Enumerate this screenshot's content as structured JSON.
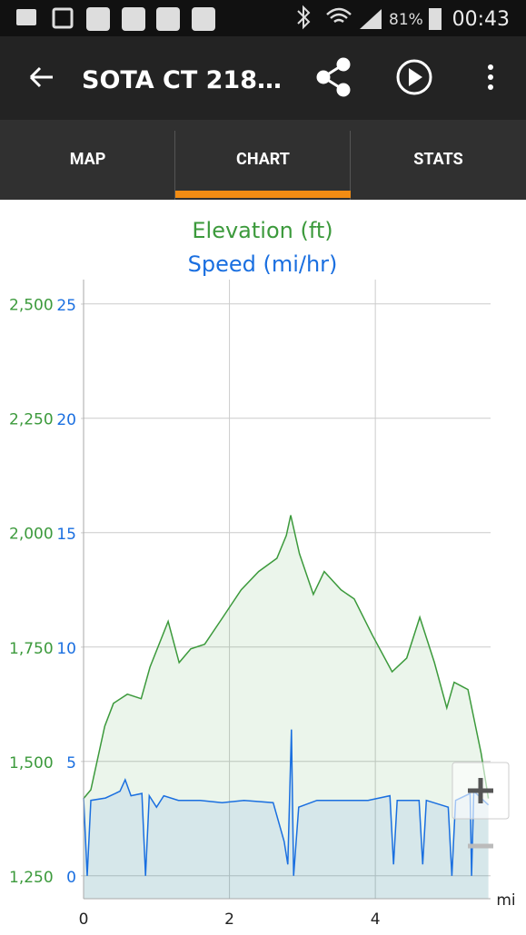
{
  "status_bar": {
    "battery": "81%",
    "time": "00:43"
  },
  "app_bar": {
    "title": "SOTA CT 218…"
  },
  "tabs": [
    "MAP",
    "CHART",
    "STATS"
  ],
  "chart_data": {
    "type": "line",
    "x_label": "mi",
    "xlim": [
      0,
      5.58
    ],
    "xticks": [
      0,
      2,
      4
    ],
    "ylim": [
      1200,
      2553
    ],
    "yticks": [
      {
        "value": 1250,
        "label": "1,250"
      },
      {
        "value": 1500,
        "label": "1,500"
      },
      {
        "value": 1750,
        "label": "1,750"
      },
      {
        "value": 2000,
        "label": "2,000"
      },
      {
        "value": 2250,
        "label": "2,250"
      },
      {
        "value": 2500,
        "label": "2,500"
      }
    ],
    "y2lim": [
      -1,
      26.07
    ],
    "y2ticks": [
      0,
      5,
      10,
      15,
      20,
      25
    ],
    "grid": true,
    "series": [
      {
        "name": "Elevation (ft)",
        "color": "#3c9a3c",
        "fill": "rgba(60,154,60,0.10)",
        "x": [
          0,
          0.1,
          0.29,
          0.41,
          0.6,
          0.79,
          0.91,
          1.16,
          1.31,
          1.47,
          1.66,
          1.91,
          2.16,
          2.4,
          2.65,
          2.78,
          2.84,
          2.96,
          3.15,
          3.3,
          3.53,
          3.71,
          3.96,
          4.23,
          4.43,
          4.61,
          4.81,
          4.98,
          5.08,
          5.27,
          5.45,
          5.55
        ],
        "values": [
          1419,
          1438,
          1577,
          1627,
          1647,
          1637,
          1706,
          1806,
          1716,
          1746,
          1756,
          1815,
          1875,
          1915,
          1944,
          1994,
          2038,
          1954,
          1865,
          1915,
          1875,
          1855,
          1776,
          1696,
          1726,
          1815,
          1716,
          1617,
          1673,
          1657,
          1518,
          1419
        ]
      },
      {
        "name": "Speed (mi/hr)",
        "color": "#1a6fe0",
        "fill": "rgba(26,111,224,0.10)",
        "axis": "y2",
        "x": [
          0,
          0.05,
          0.1,
          0.3,
          0.5,
          0.57,
          0.65,
          0.8,
          0.85,
          0.9,
          1.0,
          1.1,
          1.3,
          1.6,
          1.9,
          2.2,
          2.6,
          2.75,
          2.8,
          2.85,
          2.88,
          2.95,
          3.2,
          3.5,
          3.9,
          4.2,
          4.25,
          4.3,
          4.6,
          4.65,
          4.7,
          5.0,
          5.05,
          5.1,
          5.3,
          5.32,
          5.35,
          5.55
        ],
        "values": [
          3.4,
          0,
          3.3,
          3.4,
          3.7,
          4.2,
          3.5,
          3.6,
          0,
          3.5,
          3.0,
          3.5,
          3.3,
          3.3,
          3.2,
          3.3,
          3.2,
          1.5,
          0.5,
          6.4,
          0,
          3.0,
          3.3,
          3.3,
          3.3,
          3.5,
          0.5,
          3.3,
          3.3,
          0.5,
          3.3,
          3.0,
          0,
          3.3,
          3.6,
          0,
          3.7,
          3.1
        ]
      }
    ]
  }
}
